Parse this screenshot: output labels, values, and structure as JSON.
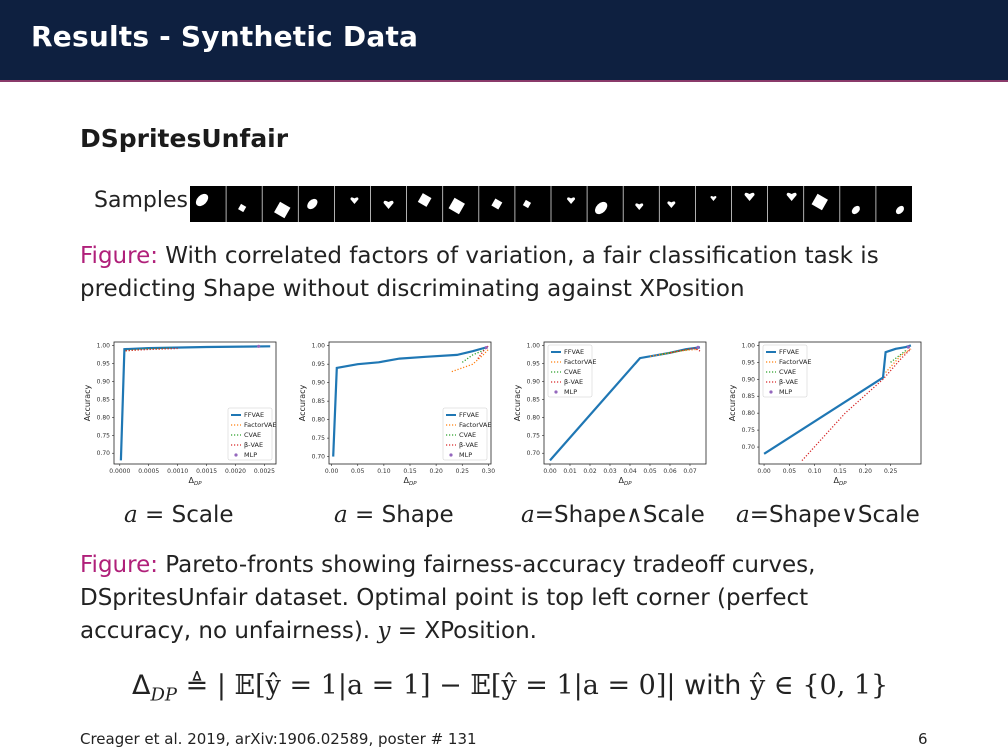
{
  "header": {
    "title": "Results - Synthetic Data"
  },
  "section": {
    "title": "DSpritesUnfair"
  },
  "samples": {
    "label": "Samples",
    "count": 20
  },
  "caption1": {
    "prefix": "Figure:",
    "text": "With correlated factors of variation, a fair classification task is predicting Shape without discriminating against XPosition"
  },
  "caption2": {
    "prefix": "Figure:",
    "line1": "Pareto-fronts showing fairness-accuracy tradeoff curves,",
    "line2": "DSpritesUnfair dataset. Optimal point is top left corner (perfect",
    "line3": "accuracy, no unfairness).",
    "y_var": "y",
    "y_value": "XPosition."
  },
  "formula": {
    "lhs": "Δ",
    "lhs_sub": "DP",
    "def": "≜",
    "rhs": "| 𝔼[ŷ = 1|a = 1] − 𝔼[ŷ = 1|a = 0]|",
    "with": "with",
    "set": "ŷ ∈ {0, 1}"
  },
  "footer": {
    "citation": "Creager et al. 2019, arXiv:1906.02589, poster # 131",
    "page": "6"
  },
  "colors": {
    "header_bg": "#0e2040",
    "accent": "#b0207a",
    "FFVAE": "#1f77b4",
    "FactorVAE": "#ff7f0e",
    "CVAE": "#2ca02c",
    "beta-VAE": "#d62728",
    "MLP": "#9467bd"
  },
  "chart_data": [
    {
      "type": "line",
      "label_var": "a",
      "label_value": "Scale",
      "xlabel": "Δ_DP",
      "ylabel": "Accuracy",
      "xlim": [
        -0.0001,
        0.0027
      ],
      "ylim": [
        0.67,
        1.01
      ],
      "xticks": [
        "0.0000",
        "0.0005",
        "0.0010",
        "0.0015",
        "0.0020",
        "0.0025"
      ],
      "yticks": [
        "0.70",
        "0.75",
        "0.80",
        "0.85",
        "0.90",
        "0.95",
        "1.00"
      ],
      "legend_loc": "lower-right",
      "legend": [
        "FFVAE",
        "FactorVAE",
        "CVAE",
        "β-VAE",
        "MLP"
      ],
      "series": [
        {
          "name": "FFVAE",
          "style": "solid",
          "points": [
            [
              2e-05,
              0.68
            ],
            [
              8e-05,
              0.99
            ],
            [
              0.0005,
              0.993
            ],
            [
              0.0015,
              0.996
            ],
            [
              0.0026,
              0.998
            ]
          ]
        },
        {
          "name": "FactorVAE",
          "style": "dotted",
          "points": [
            [
              0.0001,
              0.985
            ],
            [
              0.0004,
              0.99
            ],
            [
              0.0008,
              0.991
            ]
          ]
        },
        {
          "name": "CVAE",
          "style": "dotted",
          "points": [
            [
              0.0001,
              0.987
            ],
            [
              0.0005,
              0.991
            ],
            [
              0.0009,
              0.993
            ]
          ]
        },
        {
          "name": "β-VAE",
          "style": "dotted",
          "points": [
            [
              0.0001,
              0.986
            ],
            [
              0.0006,
              0.99
            ],
            [
              0.001,
              0.992
            ]
          ]
        },
        {
          "name": "MLP",
          "style": "marker",
          "points": [
            [
              0.0024,
              0.998
            ]
          ]
        }
      ]
    },
    {
      "type": "line",
      "label_var": "a",
      "label_value": "Shape",
      "xlabel": "Δ_DP",
      "ylabel": "Accuracy",
      "xlim": [
        -0.005,
        0.305
      ],
      "ylim": [
        0.68,
        1.01
      ],
      "xticks": [
        "0.00",
        "0.05",
        "0.10",
        "0.15",
        "0.20",
        "0.25",
        "0.30"
      ],
      "yticks": [
        "0.70",
        "0.75",
        "0.80",
        "0.85",
        "0.90",
        "0.95",
        "1.00"
      ],
      "legend_loc": "lower-right",
      "legend": [
        "FFVAE",
        "FactorVAE",
        "CVAE",
        "β-VAE",
        "MLP"
      ],
      "series": [
        {
          "name": "FFVAE",
          "style": "solid",
          "points": [
            [
              0.003,
              0.7
            ],
            [
              0.01,
              0.94
            ],
            [
              0.05,
              0.95
            ],
            [
              0.09,
              0.955
            ],
            [
              0.13,
              0.965
            ],
            [
              0.18,
              0.97
            ],
            [
              0.24,
              0.975
            ],
            [
              0.27,
              0.985
            ],
            [
              0.295,
              0.995
            ]
          ]
        },
        {
          "name": "FactorVAE",
          "style": "dotted",
          "points": [
            [
              0.23,
              0.93
            ],
            [
              0.27,
              0.95
            ],
            [
              0.29,
              0.975
            ],
            [
              0.3,
              0.99
            ]
          ]
        },
        {
          "name": "CVAE",
          "style": "dotted",
          "points": [
            [
              0.25,
              0.955
            ],
            [
              0.27,
              0.975
            ],
            [
              0.295,
              0.99
            ]
          ]
        },
        {
          "name": "β-VAE",
          "style": "dotted",
          "points": [
            [
              0.28,
              0.965
            ],
            [
              0.29,
              0.985
            ],
            [
              0.3,
              1.0
            ]
          ]
        },
        {
          "name": "MLP",
          "style": "marker",
          "points": [
            [
              0.296,
              0.995
            ]
          ]
        }
      ]
    },
    {
      "type": "line",
      "label_var": "a",
      "label_value": "Shape∧Scale",
      "xlabel": "Δ_DP",
      "ylabel": "Accuracy",
      "xlim": [
        -0.003,
        0.078
      ],
      "ylim": [
        0.67,
        1.01
      ],
      "xticks": [
        "0.00",
        "0.01",
        "0.02",
        "0.03",
        "0.04",
        "0.05",
        "0.06",
        "0.07"
      ],
      "yticks": [
        "0.70",
        "0.75",
        "0.80",
        "0.85",
        "0.90",
        "0.95",
        "1.00"
      ],
      "legend_loc": "upper-left",
      "legend": [
        "FFVAE",
        "FactorVAE",
        "CVAE",
        "β-VAE",
        "MLP"
      ],
      "series": [
        {
          "name": "FFVAE",
          "style": "solid",
          "points": [
            [
              0.0,
              0.68
            ],
            [
              0.045,
              0.965
            ],
            [
              0.06,
              0.98
            ],
            [
              0.068,
              0.99
            ],
            [
              0.075,
              0.995
            ]
          ]
        },
        {
          "name": "FactorVAE",
          "style": "dotted",
          "points": [
            [
              0.05,
              0.97
            ],
            [
              0.065,
              0.985
            ],
            [
              0.074,
              0.99
            ]
          ]
        },
        {
          "name": "CVAE",
          "style": "dotted",
          "points": [
            [
              0.055,
              0.975
            ],
            [
              0.07,
              0.99
            ]
          ]
        },
        {
          "name": "β-VAE",
          "style": "dotted",
          "points": [
            [
              0.06,
              0.98
            ],
            [
              0.072,
              0.993
            ],
            [
              0.075,
              0.985
            ]
          ]
        },
        {
          "name": "MLP",
          "style": "marker",
          "points": [
            [
              0.074,
              0.995
            ]
          ]
        }
      ]
    },
    {
      "type": "line",
      "label_var": "a",
      "label_value": "Shape∨Scale",
      "xlabel": "Δ_DP",
      "ylabel": "Accuracy",
      "xlim": [
        -0.01,
        0.31
      ],
      "ylim": [
        0.65,
        1.01
      ],
      "xticks": [
        "0.00",
        "0.05",
        "0.10",
        "0.15",
        "0.20",
        "0.25"
      ],
      "yticks": [
        "0.70",
        "0.75",
        "0.80",
        "0.85",
        "0.90",
        "0.95",
        "1.00"
      ],
      "legend_loc": "upper-left",
      "legend": [
        "FFVAE",
        "FactorVAE",
        "CVAE",
        "β-VAE",
        "MLP"
      ],
      "series": [
        {
          "name": "FFVAE",
          "style": "solid",
          "points": [
            [
              0.0,
              0.68
            ],
            [
              0.235,
              0.905
            ],
            [
              0.24,
              0.98
            ],
            [
              0.26,
              0.99
            ],
            [
              0.28,
              0.995
            ],
            [
              0.29,
              1.0
            ]
          ]
        },
        {
          "name": "FactorVAE",
          "style": "dotted",
          "points": [
            [
              0.24,
              0.92
            ],
            [
              0.27,
              0.97
            ],
            [
              0.29,
              0.99
            ]
          ]
        },
        {
          "name": "CVAE",
          "style": "dotted",
          "points": [
            [
              0.25,
              0.95
            ],
            [
              0.28,
              0.985
            ]
          ]
        },
        {
          "name": "β-VAE",
          "style": "dotted",
          "points": [
            [
              0.075,
              0.66
            ],
            [
              0.16,
              0.8
            ],
            [
              0.235,
              0.9
            ],
            [
              0.27,
              0.96
            ],
            [
              0.29,
              0.99
            ]
          ]
        },
        {
          "name": "MLP",
          "style": "marker",
          "points": [
            [
              0.285,
              0.995
            ]
          ]
        }
      ]
    }
  ]
}
